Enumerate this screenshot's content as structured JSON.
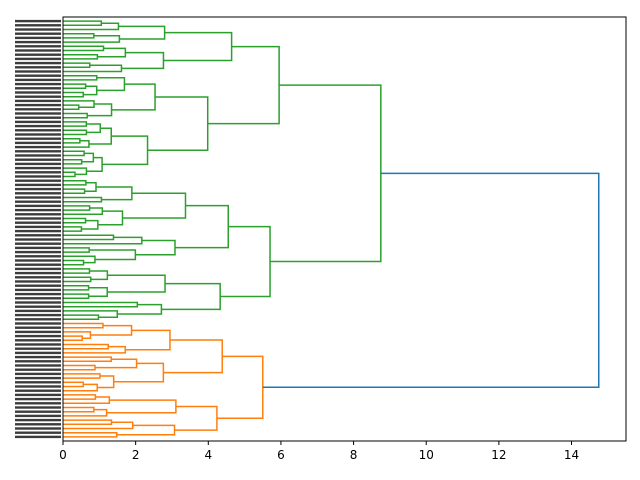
{
  "chart_data": {
    "type": "dendrogram",
    "orientation": "horizontal",
    "title": "",
    "xlabel": "",
    "ylabel": "",
    "xlim": [
      0,
      15.5
    ],
    "x_ticks": [
      0,
      2,
      4,
      6,
      8,
      10,
      12,
      14
    ],
    "x_tick_labels": [
      "0",
      "2",
      "4",
      "6",
      "8",
      "10",
      "12",
      "14"
    ],
    "leaf_count": 100,
    "colors": {
      "cluster_1": "#2ca02c",
      "cluster_2": "#ff7f0e",
      "above_threshold": "#1f77b4"
    },
    "root_merge": {
      "height": 14.75,
      "color": "above_threshold"
    },
    "clusters": [
      {
        "color": "cluster_1",
        "leaf_range": [
          0,
          72
        ],
        "merge_heights": [
          1.4,
          1.9,
          2.7,
          3.0,
          3.3,
          3.9,
          4.4,
          5.0,
          5.95,
          8.75
        ],
        "sub_merges": [
          {
            "height": 5.95,
            "children": [
              "upper",
              "middle"
            ]
          },
          {
            "height": 5.0,
            "children": [
              "a",
              "b"
            ]
          },
          {
            "height": 4.4,
            "children": [
              "a1",
              "a2"
            ]
          },
          {
            "height": 4.15,
            "children": [
              "b1",
              "b2"
            ]
          },
          {
            "height": 3.2,
            "children": [
              "c1",
              "c2"
            ]
          },
          {
            "height": 5.7,
            "children": [
              "d",
              "e"
            ]
          },
          {
            "height": 4.1,
            "children": [
              "d1",
              "d2"
            ]
          },
          {
            "height": 3.3,
            "children": [
              "d11",
              "d12"
            ]
          },
          {
            "height": 3.1,
            "children": [
              "e1",
              "e2"
            ]
          }
        ]
      },
      {
        "color": "cluster_2",
        "leaf_range": [
          72,
          100
        ],
        "merge_heights": [
          1.3,
          1.6,
          1.9,
          2.3,
          2.8,
          3.2,
          3.75,
          5.5
        ],
        "sub_merges": [
          {
            "height": 5.5,
            "children": [
              "f",
              "g"
            ]
          },
          {
            "height": 3.75,
            "children": [
              "f1",
              "f2"
            ]
          },
          {
            "height": 3.2,
            "children": [
              "f11",
              "f12"
            ]
          },
          {
            "height": 2.8,
            "children": [
              "g1",
              "g2"
            ]
          }
        ]
      }
    ],
    "grid": false,
    "legend": "none"
  }
}
